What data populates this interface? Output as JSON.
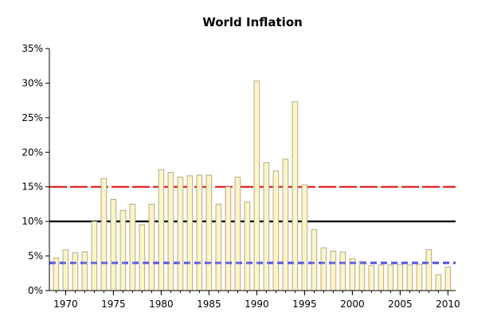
{
  "chart_data": {
    "type": "bar",
    "title": "World Inflation",
    "xlabel": "",
    "ylabel": "",
    "x": [
      1969,
      1970,
      1971,
      1972,
      1973,
      1974,
      1975,
      1976,
      1977,
      1978,
      1979,
      1980,
      1981,
      1982,
      1983,
      1984,
      1985,
      1986,
      1987,
      1988,
      1989,
      1990,
      1991,
      1992,
      1993,
      1994,
      1995,
      1996,
      1997,
      1998,
      1999,
      2000,
      2001,
      2002,
      2003,
      2004,
      2005,
      2006,
      2007,
      2008,
      2009,
      2010
    ],
    "values": [
      4.7,
      5.9,
      5.5,
      5.6,
      10.0,
      16.2,
      13.2,
      11.6,
      12.5,
      9.5,
      12.5,
      17.5,
      17.1,
      16.4,
      16.6,
      16.7,
      16.7,
      12.5,
      15.0,
      16.4,
      12.8,
      30.3,
      18.5,
      17.3,
      19.0,
      27.3,
      15.3,
      8.8,
      6.2,
      5.7,
      5.6,
      4.6,
      4.2,
      3.6,
      3.7,
      3.7,
      3.8,
      3.7,
      3.8,
      5.9,
      2.3,
      3.4
    ],
    "bar_color": "#fdf5c9",
    "bar_border": "#a39a6c",
    "xlim": [
      1968.3,
      2010.8
    ],
    "ylim": [
      0,
      35
    ],
    "x_ticks": [
      {
        "value": 1970,
        "label": "1970"
      },
      {
        "value": 1975,
        "label": "1975"
      },
      {
        "value": 1980,
        "label": "1980"
      },
      {
        "value": 1985,
        "label": "1985"
      },
      {
        "value": 1990,
        "label": "1990"
      },
      {
        "value": 1995,
        "label": "1995"
      },
      {
        "value": 2000,
        "label": "2000"
      },
      {
        "value": 2005,
        "label": "2005"
      },
      {
        "value": 2010,
        "label": "2010"
      }
    ],
    "y_ticks": [
      {
        "value": 0,
        "label": "0%"
      },
      {
        "value": 5,
        "label": "5%"
      },
      {
        "value": 10,
        "label": "10%"
      },
      {
        "value": 15,
        "label": "15%"
      },
      {
        "value": 20,
        "label": "20%"
      },
      {
        "value": 25,
        "label": "25%"
      },
      {
        "value": 30,
        "label": "30%"
      },
      {
        "value": 35,
        "label": "35%"
      }
    ],
    "reference_lines": [
      {
        "value": 15,
        "color": "#e02020",
        "style": "long-dash"
      },
      {
        "value": 10,
        "color": "#000000",
        "style": "solid"
      },
      {
        "value": 4,
        "color": "#5a5ae6",
        "style": "short-dash"
      }
    ],
    "grid": false,
    "legend": "none"
  }
}
